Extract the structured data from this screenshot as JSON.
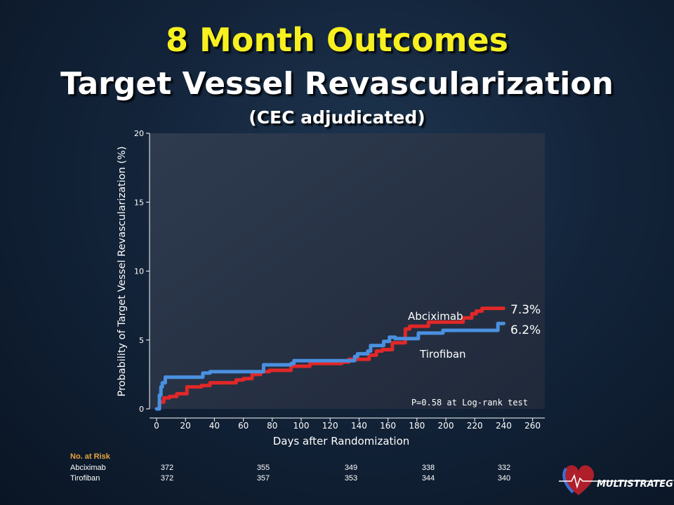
{
  "slide": {
    "title_line1": "8 Month Outcomes",
    "title_line2": "Target Vessel Revascularization",
    "title_line3": "(CEC adjudicated)"
  },
  "chart_data": {
    "type": "line",
    "xlabel": "Days after Randomization",
    "ylabel": "Probability of Target Vessel Revascularization (%)",
    "xlim": [
      0,
      260
    ],
    "ylim": [
      0,
      20
    ],
    "xticks": [
      0,
      20,
      40,
      60,
      80,
      100,
      120,
      140,
      160,
      180,
      200,
      220,
      240,
      260
    ],
    "yticks": [
      0,
      5,
      10,
      15,
      20
    ],
    "annotation": "P=0.58 at Log-rank test",
    "series": [
      {
        "name": "Abciximab",
        "color": "#e02828",
        "end_label": "7.3%",
        "x": [
          0,
          2,
          5,
          9,
          14,
          21,
          31,
          37,
          55,
          60,
          66,
          72,
          78,
          84,
          93,
          106,
          118,
          128,
          133,
          147,
          152,
          156,
          163,
          172,
          175,
          188,
          212,
          218,
          221,
          225,
          240
        ],
        "y": [
          0,
          0.5,
          0.8,
          0.9,
          1.1,
          1.6,
          1.7,
          1.9,
          2.1,
          2.2,
          2.5,
          2.7,
          2.8,
          2.8,
          3.1,
          3.3,
          3.3,
          3.4,
          3.6,
          3.9,
          4.2,
          4.3,
          4.8,
          5.8,
          6.0,
          6.3,
          6.6,
          6.9,
          7.1,
          7.3,
          7.3
        ]
      },
      {
        "name": "Tirofiban",
        "color": "#4a90e0",
        "end_label": "6.2%",
        "x": [
          0,
          2,
          3,
          4,
          6,
          32,
          37,
          72,
          74,
          93,
          95,
          132,
          137,
          139,
          146,
          148,
          157,
          161,
          165,
          181,
          198,
          234,
          236,
          240
        ],
        "y": [
          0,
          1.0,
          1.6,
          1.9,
          2.3,
          2.6,
          2.7,
          2.7,
          3.2,
          3.3,
          3.5,
          3.5,
          3.8,
          4.0,
          4.2,
          4.6,
          4.9,
          5.2,
          5.1,
          5.5,
          5.7,
          5.7,
          6.2,
          6.2
        ]
      }
    ]
  },
  "at_risk": {
    "header": "No. at Risk",
    "rows": [
      {
        "label": "Abciximab",
        "values": [
          "372",
          "355",
          "349",
          "338",
          "332"
        ]
      },
      {
        "label": "Tirofiban",
        "values": [
          "372",
          "357",
          "353",
          "344",
          "340"
        ]
      }
    ]
  },
  "logo": {
    "text": "MULTISTRATEGY",
    "icon": "heart-pulse-logo-icon"
  }
}
